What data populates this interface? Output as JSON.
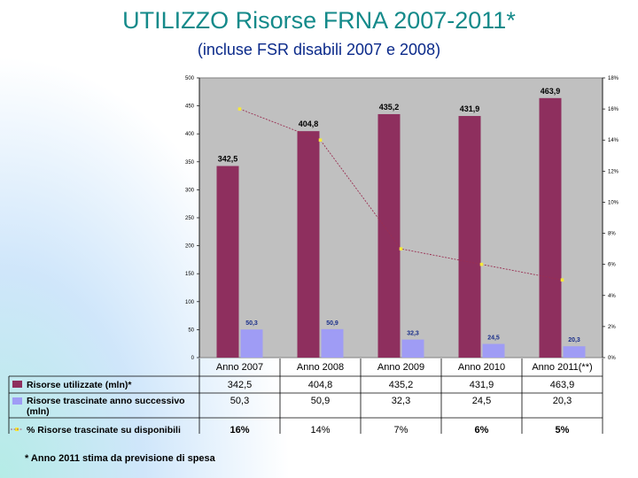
{
  "header": {
    "title": "UTILIZZO Risorse FRNA 2007-2011*",
    "subtitle": "(incluse FSR disabili 2007 e 2008)"
  },
  "footnote": "* Anno 2011 stima da previsione di spesa",
  "colors": {
    "bar_primary": "#8e2f5e",
    "bar_secondary": "#9f9cf5",
    "line": "#9a2f52",
    "marker": "#f5e93a",
    "plot_bg": "#c0c0c0"
  },
  "chart_data": {
    "type": "bar",
    "categories": [
      "Anno 2007",
      "Anno 2008",
      "Anno 2009",
      "Anno 2010",
      "Anno 2011(**)"
    ],
    "series": [
      {
        "name": "Risorse utilizzate (mln)*",
        "kind": "bar",
        "axis": "left",
        "values": [
          342.5,
          404.8,
          435.2,
          431.9,
          463.9
        ],
        "labels": [
          "342,5",
          "404,8",
          "435,2",
          "431,9",
          "463,9"
        ]
      },
      {
        "name": "Risorse trascinate anno successivo (mln)",
        "kind": "bar",
        "axis": "left",
        "values": [
          50.3,
          50.9,
          32.3,
          24.5,
          20.3
        ],
        "labels": [
          "50,3",
          "50,9",
          "32,3",
          "24,5",
          "20,3"
        ]
      },
      {
        "name": "% Risorse trascinate su disponibili",
        "kind": "line",
        "axis": "right",
        "values": [
          16,
          14,
          7,
          6,
          5
        ],
        "labels": [
          "16%",
          "14%",
          "7%",
          "6%",
          "5%"
        ]
      }
    ],
    "table_labels": [
      [
        "342,5",
        "404,8",
        "435,2",
        "431,9",
        "463,9"
      ],
      [
        "50,3",
        "50,9",
        "32,3",
        "24,5",
        "20,3"
      ],
      [
        "16%",
        "14%",
        "7%",
        "6%",
        "5%"
      ]
    ],
    "ylim": [
      0,
      500
    ],
    "yticks": [
      0,
      50,
      100,
      150,
      200,
      250,
      300,
      350,
      400,
      450,
      500
    ],
    "y2lim": [
      0,
      18
    ],
    "y2ticks": [
      "0%",
      "2%",
      "4%",
      "6%",
      "8%",
      "10%",
      "12%",
      "14%",
      "16%",
      "18%"
    ]
  }
}
